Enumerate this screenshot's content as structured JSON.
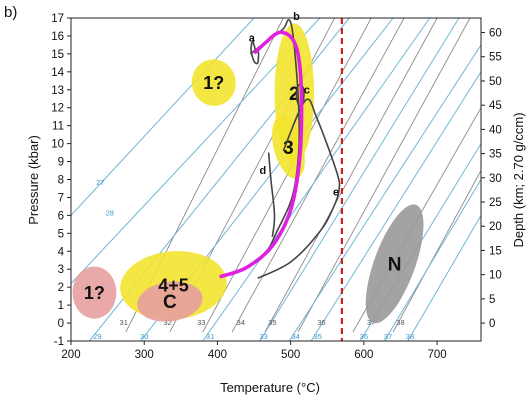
{
  "chart_data": {
    "type": "line",
    "panel_label": "b)",
    "xlabel": "Temperature (°C)",
    "ylabel": "Pressure (kbar)",
    "y2label": "Depth (km; 2.70 g/ccm)",
    "xlim": [
      200,
      760
    ],
    "ylim": [
      -1,
      17
    ],
    "y2lim": [
      -3.7,
      63
    ],
    "x_ticks": [
      200,
      300,
      400,
      500,
      600,
      700
    ],
    "y_ticks": [
      -1,
      0,
      1,
      2,
      3,
      4,
      5,
      6,
      7,
      8,
      9,
      10,
      11,
      12,
      13,
      14,
      15,
      16,
      17
    ],
    "y2_ticks": [
      0,
      5,
      10,
      15,
      20,
      25,
      30,
      35,
      40,
      45,
      50,
      55,
      60
    ],
    "vertical_marker": {
      "x": 570,
      "color": "#cc2222",
      "style": "dashed"
    },
    "colors": {
      "main_path": "#e020e0",
      "reference_lines_blue": "#6fb7d6",
      "reference_lines_gray": "#8c8c8c",
      "curve": "#444444",
      "yellow_field": "#f3e32f",
      "pink_field": "#e7a0a0",
      "gray_field": "#999999"
    },
    "reference_lines_blue": [
      {
        "label": "27",
        "pts": [
          [
            200,
            6.0
          ],
          [
            450,
            17
          ]
        ]
      },
      {
        "label": "28",
        "pts": [
          [
            200,
            2.2
          ],
          [
            540,
            17
          ]
        ]
      },
      {
        "label": "29",
        "pts": [
          [
            225,
            -1
          ],
          [
            580,
            17
          ]
        ]
      },
      {
        "label": "30",
        "pts": [
          [
            295,
            -1
          ],
          [
            640,
            17
          ]
        ]
      },
      {
        "label": "31",
        "pts": [
          [
            380,
            -1
          ],
          [
            690,
            17
          ]
        ]
      },
      {
        "label": "33",
        "pts": [
          [
            458,
            -1
          ],
          [
            730,
            17
          ]
        ]
      },
      {
        "label": "34",
        "pts": [
          [
            498,
            -1
          ],
          [
            760,
            15.5
          ]
        ]
      },
      {
        "label": "35",
        "pts": [
          [
            528,
            -1
          ],
          [
            760,
            14.0
          ]
        ]
      },
      {
        "label": "36",
        "pts": [
          [
            595,
            -1
          ],
          [
            760,
            10.0
          ]
        ]
      },
      {
        "label": "37",
        "pts": [
          [
            628,
            -1
          ],
          [
            760,
            8.0
          ]
        ]
      },
      {
        "label": "38",
        "pts": [
          [
            660,
            -1
          ],
          [
            760,
            6.0
          ]
        ]
      }
    ],
    "reference_lines_gray": [
      {
        "label": "31",
        "pts": [
          [
            275,
            -0.5
          ],
          [
            490,
            17
          ]
        ]
      },
      {
        "label": "32",
        "pts": [
          [
            335,
            -0.5
          ],
          [
            560,
            17
          ]
        ]
      },
      {
        "label": "33",
        "pts": [
          [
            380,
            -0.5
          ],
          [
            610,
            17
          ]
        ]
      },
      {
        "label": "34",
        "pts": [
          [
            420,
            -0.5
          ],
          [
            655,
            17
          ]
        ]
      },
      {
        "label": "35",
        "pts": [
          [
            465,
            -0.5
          ],
          [
            700,
            17
          ]
        ]
      },
      {
        "label": "36",
        "pts": [
          [
            510,
            -0.5
          ],
          [
            745,
            17
          ]
        ]
      },
      {
        "label": "37",
        "pts": [
          [
            585,
            -0.5
          ],
          [
            760,
            12.0
          ]
        ]
      },
      {
        "label": "38",
        "pts": [
          [
            640,
            -0.5
          ],
          [
            760,
            8.5
          ]
        ]
      }
    ],
    "ref_labels_blue": [
      {
        "text": "27",
        "x": 240,
        "y": 7.7
      },
      {
        "text": "28",
        "x": 253,
        "y": 6.0
      },
      {
        "text": "29",
        "x": 236,
        "y": -0.9
      },
      {
        "text": "30",
        "x": 300,
        "y": -0.9
      },
      {
        "text": "31",
        "x": 390,
        "y": -0.9
      },
      {
        "text": "33",
        "x": 463,
        "y": -0.9
      },
      {
        "text": "34",
        "x": 507,
        "y": -0.9
      },
      {
        "text": "35",
        "x": 537,
        "y": -0.9
      },
      {
        "text": "36",
        "x": 600,
        "y": -0.9
      },
      {
        "text": "37",
        "x": 633,
        "y": -0.9
      },
      {
        "text": "38",
        "x": 663,
        "y": -0.9
      }
    ],
    "ref_labels_gray": [
      {
        "text": "31",
        "x": 272,
        "y": -0.1
      },
      {
        "text": "32",
        "x": 332,
        "y": -0.1
      },
      {
        "text": "33",
        "x": 378,
        "y": -0.1
      },
      {
        "text": "34",
        "x": 432,
        "y": -0.1
      },
      {
        "text": "35",
        "x": 475,
        "y": -0.1
      },
      {
        "text": "36",
        "x": 542,
        "y": -0.1
      },
      {
        "text": "37",
        "x": 610,
        "y": -0.1
      },
      {
        "text": "38",
        "x": 650,
        "y": -0.1
      }
    ],
    "fields": [
      {
        "label": "1?",
        "cx": 395,
        "cy": 13.4,
        "rx": 30,
        "ry": 1.3,
        "rot": -10,
        "color": "#f3e32f",
        "fs": 18
      },
      {
        "label": "2",
        "cx": 505,
        "cy": 12.8,
        "rx": 27,
        "ry": 3.9,
        "rot": 0,
        "color": "#f3e32f",
        "fs": 19
      },
      {
        "label": "3",
        "cx": 497,
        "cy": 9.8,
        "rx": 20,
        "ry": 1.8,
        "rot": -15,
        "color": "#f3e32f",
        "fs": 19
      },
      {
        "label": "4+5",
        "cx": 340,
        "cy": 2.1,
        "rx": 73,
        "ry": 1.9,
        "rot": -5,
        "color": "#f3e32f",
        "fs": 18
      },
      {
        "label": "1?",
        "cx": 232,
        "cy": 1.7,
        "rx": 30,
        "ry": 1.45,
        "rot": 0,
        "color": "#e7a0a0",
        "fs": 18
      },
      {
        "label": "C",
        "cx": 335,
        "cy": 1.2,
        "rx": 45,
        "ry": 1.1,
        "rot": -8,
        "color": "#e7a0a0",
        "fs": 19
      },
      {
        "label": "N",
        "cx": 642,
        "cy": 3.3,
        "rx": 28,
        "ry": 3.5,
        "rot": 20,
        "color": "#999999",
        "fs": 19
      }
    ],
    "main_path": [
      [
        405,
        2.6
      ],
      [
        440,
        3.1
      ],
      [
        475,
        4.3
      ],
      [
        500,
        6.3
      ],
      [
        512,
        9.0
      ],
      [
        515,
        12.0
      ],
      [
        512,
        14.5
      ],
      [
        503,
        15.8
      ],
      [
        485,
        16.2
      ],
      [
        465,
        15.6
      ],
      [
        452,
        15.1
      ]
    ],
    "curves": [
      {
        "label": "a",
        "pts": [
          [
            452,
            15.2
          ],
          [
            448,
            15.7
          ],
          [
            446,
            15.2
          ],
          [
            450,
            14.6
          ],
          [
            455,
            14.5
          ],
          [
            456,
            15.1
          ],
          [
            452,
            15.2
          ]
        ]
      },
      {
        "label": "b",
        "pts": [
          [
            445,
            15.0
          ],
          [
            470,
            15.8
          ],
          [
            490,
            16.4
          ],
          [
            497,
            16.9
          ],
          [
            502,
            16.4
          ],
          [
            507,
            14.5
          ],
          [
            511,
            12.0
          ],
          [
            511,
            9.5
          ],
          [
            502,
            7.0
          ],
          [
            480,
            5.0
          ],
          [
            470,
            4.1
          ]
        ]
      },
      {
        "label": "c",
        "pts": [
          [
            514,
            13.3
          ],
          [
            518,
            13.0
          ],
          [
            517,
            12.3
          ],
          [
            512,
            12.1
          ],
          [
            508,
            12.6
          ],
          [
            510,
            13.2
          ],
          [
            514,
            13.3
          ]
        ]
      },
      {
        "label": "d",
        "pts": [
          [
            475,
            4.8
          ],
          [
            478,
            6.0
          ],
          [
            473,
            8.0
          ],
          [
            470,
            9.5
          ]
        ]
      },
      {
        "label": "e",
        "pts": [
          [
            490,
            9.6
          ],
          [
            520,
            12.4
          ],
          [
            536,
            11.4
          ],
          [
            563,
            8.4
          ],
          [
            566,
            7.4
          ],
          [
            558,
            6.4
          ],
          [
            540,
            5.1
          ],
          [
            500,
            3.4
          ],
          [
            455,
            2.5
          ]
        ]
      }
    ],
    "curve_labels": [
      {
        "text": "a",
        "x": 447,
        "y": 15.7
      },
      {
        "text": "b",
        "x": 508,
        "y": 16.9
      },
      {
        "text": "c",
        "x": 522,
        "y": 12.8
      },
      {
        "text": "d",
        "x": 462,
        "y": 8.3
      },
      {
        "text": "e",
        "x": 562,
        "y": 7.1
      }
    ]
  }
}
